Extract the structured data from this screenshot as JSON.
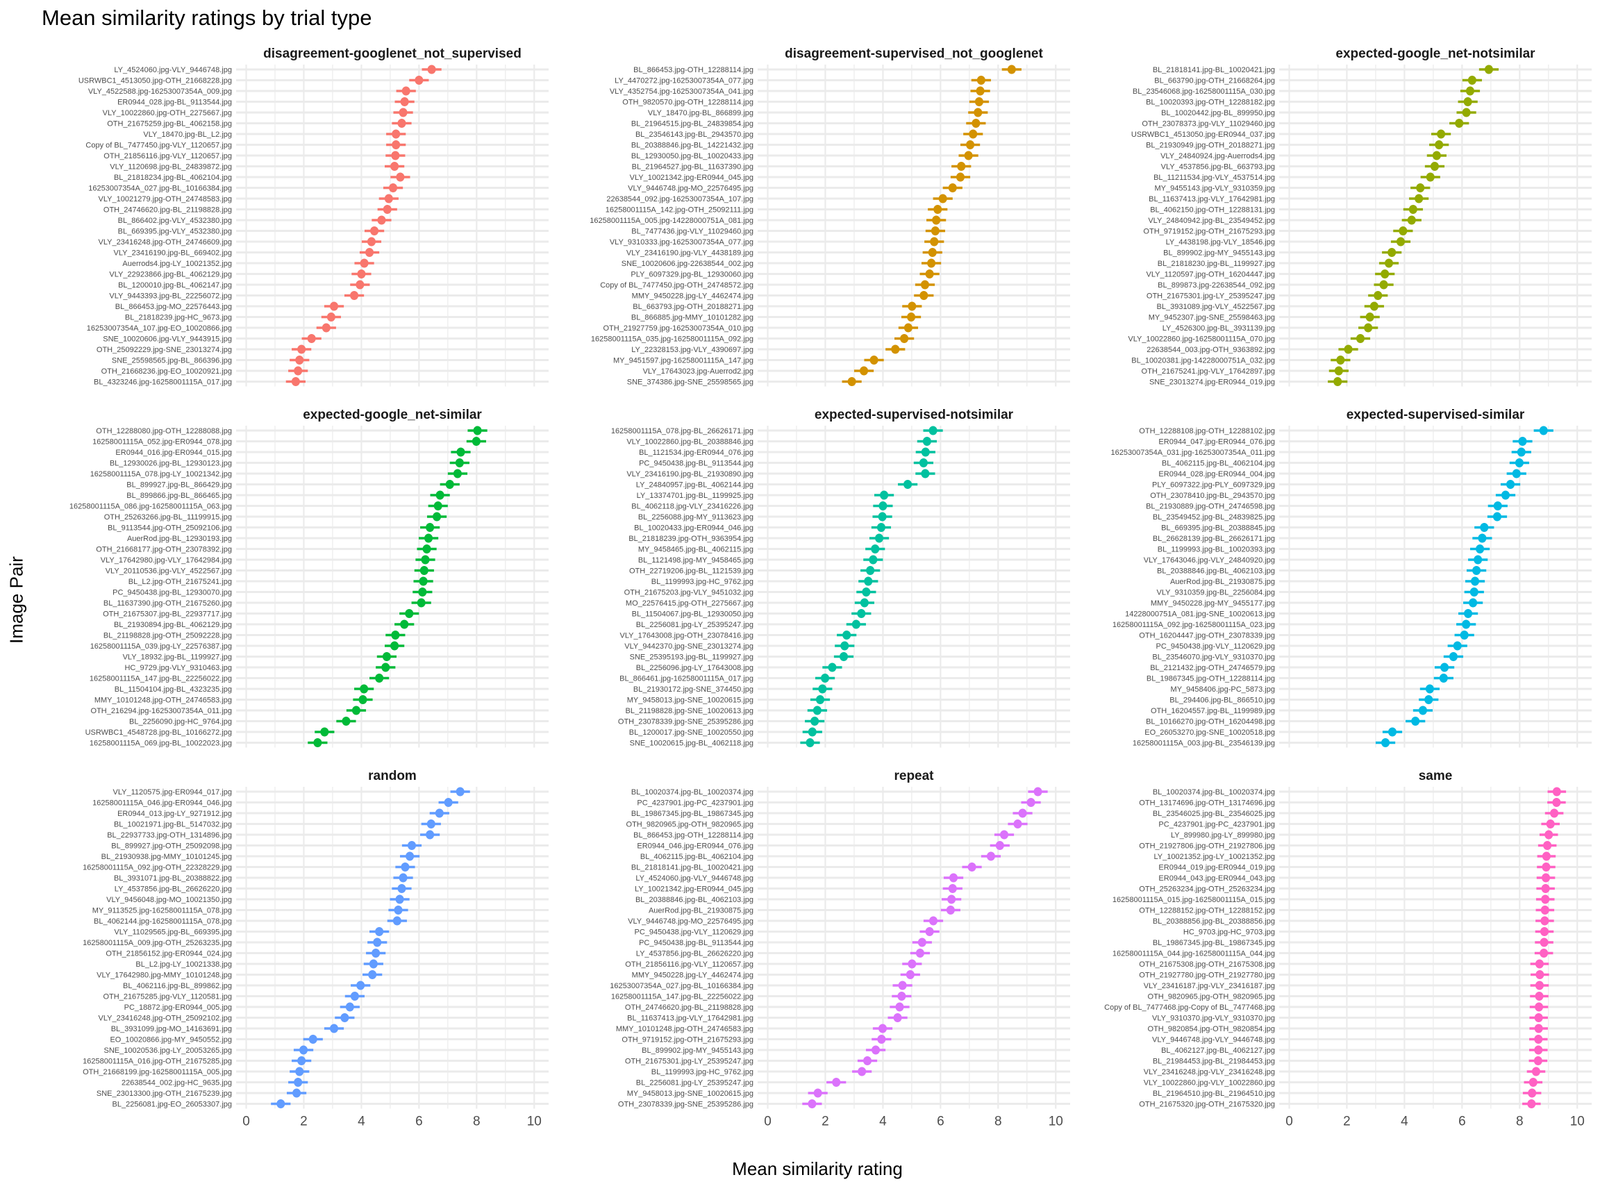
{
  "title": "Mean similarity ratings by trial type",
  "chart_data": {
    "type": "scatter",
    "title": "Mean similarity ratings by trial type",
    "xlabel": "Mean similarity rating",
    "ylabel": "Image Pair",
    "xlim": [
      -0.35,
      10.5
    ],
    "xticks": [
      0,
      2,
      4,
      6,
      8,
      10
    ],
    "grid": true,
    "legend": "none",
    "marks": "point with horizontal error bar",
    "panels": [
      {
        "name": "disagreement-googlenet_not_supervised",
        "color": "#F8766D",
        "error": 0.34,
        "labels": [
          "LY_4524060.jpg-VLY_9446748.jpg",
          "USRWBC1_4513050.jpg-OTH_21668228.jpg",
          "VLY_4522588.jpg-16253007354A_009.jpg",
          "ER0944_028.jpg-BL_9113544.jpg",
          "VLY_10022860.jpg-OTH_2275667.jpg",
          "OTH_21675259.jpg-BL_4062158.jpg",
          "VLY_18470.jpg-BL_L2.jpg",
          "Copy of BL_7477450.jpg-VLY_1120657.jpg",
          "OTH_21856116.jpg-VLY_1120657.jpg",
          "VLY_1120698.jpg-BL_24839872.jpg",
          "BL_21818234.jpg-BL_4062104.jpg",
          "16253007354A_027.jpg-BL_10166384.jpg",
          "VLY_10021279.jpg-OTH_24748583.jpg",
          "OTH_24746620.jpg-BL_21198828.jpg",
          "BL_866402.jpg-VLY_4532380.jpg",
          "BL_669395.jpg-VLY_4532380.jpg",
          "VLY_23416248.jpg-OTH_24746609.jpg",
          "VLY_23416190.jpg-BL_669402.jpg",
          "Auerrods4.jpg-LY_10021352.jpg",
          "VLY_22923866.jpg-BL_4062129.jpg",
          "BL_1200010.jpg-BL_4062147.jpg",
          "VLY_9443393.jpg-BL_22256072.jpg",
          "BL_866453.jpg-MO_22576443.jpg",
          "BL_21818239.jpg-HC_9673.jpg",
          "16253007354A_107.jpg-EO_10020866.jpg",
          "SNE_10020606.jpg-VLY_9443915.jpg",
          "OTH_25092229.jpg-SNE_23013274.jpg",
          "SNE_25598565.jpg-BL_866396.jpg",
          "OTH_21668236.jpg-EO_10020921.jpg",
          "BL_4323246.jpg-16258001115A_017.jpg"
        ],
        "values": [
          6.44,
          6.0,
          5.55,
          5.5,
          5.45,
          5.4,
          5.2,
          5.2,
          5.18,
          5.15,
          5.35,
          5.1,
          4.95,
          4.9,
          4.7,
          4.45,
          4.35,
          4.28,
          4.1,
          4.0,
          3.95,
          3.75,
          3.05,
          2.95,
          2.78,
          2.27,
          1.92,
          1.85,
          1.8,
          1.72
        ]
      },
      {
        "name": "disagreement-supervised_not_googlenet",
        "color": "#D39200",
        "error": 0.34,
        "labels": [
          "BL_866453.jpg-OTH_12288114.jpg",
          "LY_4470272.jpg-16253007354A_077.jpg",
          "VLY_4352754.jpg-16253007354A_041.jpg",
          "OTH_9820570.jpg-OTH_12288114.jpg",
          "VLY_18470.jpg-BL_866899.jpg",
          "BL_21964515.jpg-BL_24839854.jpg",
          "BL_23546143.jpg-BL_2943570.jpg",
          "BL_20388846.jpg-BL_14221432.jpg",
          "BL_12930050.jpg-BL_10020433.jpg",
          "BL_21964527.jpg-BL_11637390.jpg",
          "VLY_10021342.jpg-ER0944_045.jpg",
          "VLY_9446748.jpg-MO_22576495.jpg",
          "22638544_092.jpg-16253007354A_107.jpg",
          "16258001115A_142.jpg-OTH_25092111.jpg",
          "16258001115A_005.jpg-14228000751A_081.jpg",
          "BL_7477436.jpg-VLY_11029460.jpg",
          "VLY_9310333.jpg-16253007354A_077.jpg",
          "VLY_23416190.jpg-VLY_4438189.jpg",
          "SNE_10020606.jpg-22638544_002.jpg",
          "PLY_6097329.jpg-BL_12930060.jpg",
          "Copy of BL_7477450.jpg-OTH_24748572.jpg",
          "MMY_9450228.jpg-LY_4462474.jpg",
          "BL_663793.jpg-OTH_20188271.jpg",
          "BL_866885.jpg-MMY_10101282.jpg",
          "OTH_21927759.jpg-16253007354A_010.jpg",
          "16258001115A_035.jpg-16258001115A_092.jpg",
          "LY_22328153.jpg-VLY_4390697.jpg",
          "MY_9451597.jpg-16258001115A_147.jpg",
          "VLY_17643023.jpg-Auerrod2.jpg",
          "SNE_374386.jpg-SNE_25598565.jpg"
        ],
        "values": [
          8.47,
          7.41,
          7.38,
          7.34,
          7.3,
          7.23,
          7.13,
          7.03,
          6.97,
          6.72,
          6.69,
          6.42,
          6.08,
          5.9,
          5.85,
          5.82,
          5.78,
          5.72,
          5.68,
          5.62,
          5.46,
          5.42,
          5.01,
          4.98,
          4.88,
          4.74,
          4.43,
          3.69,
          3.34,
          2.92
        ]
      },
      {
        "name": "expected-google_net-notsimilar",
        "color": "#93AA00",
        "error": 0.34,
        "labels": [
          "BL_21818141.jpg-BL_10020421.jpg",
          "BL_663790.jpg-OTH_21668264.jpg",
          "BL_23546068.jpg-16258001115A_030.jpg",
          "BL_10020393.jpg-OTH_12288182.jpg",
          "BL_10020442.jpg-BL_899950.jpg",
          "OTH_23078373.jpg-VLY_11029460.jpg",
          "USRWBC1_4513050.jpg-ER0944_037.jpg",
          "BL_21930949.jpg-OTH_20188271.jpg",
          "VLY_24840924.jpg-Auerrods4.jpg",
          "VLY_4537856.jpg-BL_663793.jpg",
          "BL_11211534.jpg-VLY_4537514.jpg",
          "MY_9455143.jpg-VLY_9310359.jpg",
          "BL_11637413.jpg-VLY_17642981.jpg",
          "BL_4062150.jpg-OTH_12288131.jpg",
          "VLY_24840942.jpg-BL_23549452.jpg",
          "OTH_9719152.jpg-OTH_21675293.jpg",
          "LY_4438198.jpg-VLY_18546.jpg",
          "BL_899902.jpg-MY_9455143.jpg",
          "BL_21818230.jpg-BL_1199927.jpg",
          "VLY_1120597.jpg-OTH_16204447.jpg",
          "BL_899873.jpg-22638544_092.jpg",
          "OTH_21675301.jpg-LY_25395247.jpg",
          "BL_3931089.jpg-VLY_4522567.jpg",
          "MY_9452307.jpg-SNE_25598463.jpg",
          "LY_4526300.jpg-BL_3931139.jpg",
          "VLY_10022860.jpg-16258001115A_070.jpg",
          "22638544_003.jpg-OTH_9363892.jpg",
          "BL_10020381.jpg-14228000751A_032.jpg",
          "OTH_21675241.jpg-VLY_17642897.jpg",
          "SNE_23013274.jpg-ER0944_019.jpg"
        ],
        "values": [
          6.93,
          6.35,
          6.28,
          6.2,
          6.15,
          5.9,
          5.27,
          5.2,
          5.12,
          5.05,
          4.9,
          4.55,
          4.5,
          4.3,
          4.25,
          3.95,
          3.87,
          3.56,
          3.46,
          3.32,
          3.28,
          3.08,
          2.95,
          2.8,
          2.74,
          2.47,
          2.05,
          1.78,
          1.72,
          1.68
        ]
      },
      {
        "name": "expected-google_net-similar",
        "color": "#00BA38",
        "error": 0.34,
        "labels": [
          "OTH_12288080.jpg-OTH_12288088.jpg",
          "16258001115A_052.jpg-ER0944_078.jpg",
          "ER0944_016.jpg-ER0944_015.jpg",
          "BL_12930026.jpg-BL_12930123.jpg",
          "16258001115A_078.jpg-LY_10021342.jpg",
          "BL_899927.jpg-BL_866429.jpg",
          "BL_899866.jpg-BL_866465.jpg",
          "16258001115A_086.jpg-16258001115A_063.jpg",
          "OTH_25263266.jpg-BL_11199915.jpg",
          "BL_9113544.jpg-OTH_25092106.jpg",
          "AuerRod.jpg-BL_12930193.jpg",
          "OTH_21668177.jpg-OTH_23078392.jpg",
          "VLY_17642980.jpg-VLY_17642984.jpg",
          "VLY_20110536.jpg-VLY_4522567.jpg",
          "BL_L2.jpg-OTH_21675241.jpg",
          "PC_9450438.jpg-BL_12930070.jpg",
          "BL_11637390.jpg-OTH_21675260.jpg",
          "OTH_21675307.jpg-BL_22937717.jpg",
          "BL_21930894.jpg-BL_4062129.jpg",
          "BL_21198828.jpg-OTH_25092228.jpg",
          "16258001115A_039.jpg-LY_22576387.jpg",
          "VLY_18932.jpg-BL_1199927.jpg",
          "HC_9729.jpg-VLY_9310463.jpg",
          "16258001115A_147.jpg-BL_22256022.jpg",
          "BL_11504104.jpg-BL_4323235.jpg",
          "MMY_10101248.jpg-OTH_24746583.jpg",
          "OTH_216294.jpg-16253007354A_011.jpg",
          "BL_2256090.jpg-HC_9764.jpg",
          "USRWBC1_4548728.jpg-BL_10166272.jpg",
          "16258001115A_069.jpg-BL_10022023.jpg"
        ],
        "values": [
          8.03,
          7.99,
          7.45,
          7.41,
          7.34,
          7.07,
          6.73,
          6.66,
          6.62,
          6.38,
          6.33,
          6.27,
          6.22,
          6.18,
          6.15,
          6.12,
          6.08,
          5.66,
          5.49,
          5.18,
          5.15,
          4.88,
          4.84,
          4.62,
          4.09,
          4.05,
          3.82,
          3.47,
          2.72,
          2.48
        ]
      },
      {
        "name": "expected-supervised-notsimilar",
        "color": "#00C19F",
        "error": 0.34,
        "labels": [
          "16258001115A_078.jpg-BL_26626171.jpg",
          "VLY_10022860.jpg-BL_20388846.jpg",
          "BL_1121534.jpg-ER0944_076.jpg",
          "PC_9450438.jpg-BL_9113544.jpg",
          "VLY_23416190.jpg-BL_21930890.jpg",
          "LY_24840957.jpg-BL_4062144.jpg",
          "LY_13374701.jpg-BL_1199925.jpg",
          "BL_4062118.jpg-VLY_23416226.jpg",
          "BL_2256088.jpg-MY_9113623.jpg",
          "BL_10020433.jpg-ER0944_046.jpg",
          "BL_21818239.jpg-OTH_9363954.jpg",
          "MY_9458465.jpg-BL_4062115.jpg",
          "BL_1121498.jpg-MY_9458465.jpg",
          "OTH_22719206.jpg-BL_1121539.jpg",
          "BL_1199993.jpg-HC_9762.jpg",
          "OTH_21675203.jpg-VLY_9451032.jpg",
          "MO_22576415.jpg-OTH_2275667.jpg",
          "BL_11504067.jpg-BL_12930050.jpg",
          "BL_2256081.jpg-LY_25395247.jpg",
          "VLY_17643008.jpg-OTH_23078416.jpg",
          "VLY_9442370.jpg-SNE_23013274.jpg",
          "SNE_25395193.jpg-BL_1199927.jpg",
          "BL_2256096.jpg-LY_17643008.jpg",
          "BL_866461.jpg-16258001115A_017.jpg",
          "BL_21930172.jpg-SNE_374450.jpg",
          "MY_9458013.jpg-SNE_10020615.jpg",
          "BL_21198828.jpg-SNE_10020613.jpg",
          "OTH_23078339.jpg-SNE_25395286.jpg",
          "BL_1200017.jpg-SNE_10020550.jpg",
          "SNE_10020615.jpg-BL_4062118.jpg"
        ],
        "values": [
          5.74,
          5.53,
          5.48,
          5.41,
          5.47,
          4.86,
          4.04,
          4.0,
          3.98,
          3.94,
          3.87,
          3.73,
          3.66,
          3.56,
          3.49,
          3.42,
          3.36,
          3.25,
          3.07,
          2.74,
          2.67,
          2.64,
          2.24,
          1.99,
          1.9,
          1.82,
          1.72,
          1.63,
          1.55,
          1.47
        ]
      },
      {
        "name": "expected-supervised-similar",
        "color": "#00B9E3",
        "error": 0.34,
        "labels": [
          "OTH_12288108.jpg-OTH_12288102.jpg",
          "ER0944_047.jpg-ER0944_076.jpg",
          "16253007354A_031.jpg-16253007354A_011.jpg",
          "BL_4062115.jpg-BL_4062104.jpg",
          "ER0944_028.jpg-ER0944_004.jpg",
          "PLY_6097322.jpg-PLY_6097329.jpg",
          "OTH_23078410.jpg-BL_2943570.jpg",
          "BL_21930889.jpg-OTH_24746598.jpg",
          "BL_23549452.jpg-BL_24839825.jpg",
          "BL_669395.jpg-BL_20388845.jpg",
          "BL_26628139.jpg-BL_26626171.jpg",
          "BL_1199993.jpg-BL_10020393.jpg",
          "VLY_17643046.jpg-VLY_24840920.jpg",
          "BL_20388846.jpg-BL_4062103.jpg",
          "AuerRod.jpg-BL_21930875.jpg",
          "VLY_9310359.jpg-BL_2256084.jpg",
          "MMY_9450228.jpg-MY_9455177.jpg",
          "14228000751A_081.jpg-SNE_10020613.jpg",
          "16258001115A_092.jpg-16258001115A_023.jpg",
          "OTH_16204447.jpg-OTH_23078339.jpg",
          "PC_9450438.jpg-VLY_1120629.jpg",
          "BL_23546070.jpg-VLY_9310370.jpg",
          "BL_2121432.jpg-OTH_24746579.jpg",
          "BL_19867345.jpg-OTH_12288114.jpg",
          "MY_9458406.jpg-PC_5873.jpg",
          "BL_294406.jpg-BL_866510.jpg",
          "OTH_16204557.jpg-BL_1199989.jpg",
          "BL_10166270.jpg-OTH_16204498.jpg",
          "EO_26053270.jpg-SNE_10020518.jpg",
          "16258001115A_003.jpg-BL_23546139.jpg"
        ],
        "values": [
          8.83,
          8.1,
          8.06,
          7.99,
          7.89,
          7.68,
          7.51,
          7.24,
          7.22,
          6.77,
          6.7,
          6.62,
          6.55,
          6.5,
          6.45,
          6.42,
          6.38,
          6.21,
          6.14,
          6.08,
          5.84,
          5.7,
          5.39,
          5.36,
          4.88,
          4.84,
          4.64,
          4.38,
          3.58,
          3.34
        ]
      },
      {
        "name": "random",
        "color": "#619CFF",
        "error": 0.34,
        "labels": [
          "VLY_1120575.jpg-ER0944_017.jpg",
          "16258001115A_046.jpg-ER0944_046.jpg",
          "ER0944_013.jpg-LY_9271912.jpg",
          "BL_10021971.jpg-BL_5147032.jpg",
          "BL_22937733.jpg-OTH_1314896.jpg",
          "BL_899927.jpg-OTH_25092098.jpg",
          "BL_21930938.jpg-MMY_10101245.jpg",
          "16258001115A_092.jpg-OTH_22328229.jpg",
          "BL_3931071.jpg-BL_20388822.jpg",
          "LY_4537856.jpg-BL_26626220.jpg",
          "VLY_9456048.jpg-MO_10021350.jpg",
          "MY_9113525.jpg-16258001115A_078.jpg",
          "BL_4062144.jpg-16258001115A_078.jpg",
          "VLY_11029565.jpg-BL_669395.jpg",
          "16258001115A_009.jpg-OTH_25263235.jpg",
          "OTH_21856152.jpg-ER0944_024.jpg",
          "BL_L2.jpg-LY_10021338.jpg",
          "VLY_17642980.jpg-MMY_10101248.jpg",
          "BL_4062116.jpg-BL_899862.jpg",
          "OTH_21675285.jpg-VLY_1120581.jpg",
          "PC_18872.jpg-ER0944_005.jpg",
          "VLY_23416248.jpg-OTH_25092102.jpg",
          "BL_3931099.jpg-MO_14163691.jpg",
          "EO_10020866.jpg-MY_9450552.jpg",
          "SNE_10020536.jpg-LY_20053265.jpg",
          "16258001115A_016.jpg-OTH_21675285.jpg",
          "OTH_21668199.jpg-16258001115A_005.jpg",
          "22638544_002.jpg-HC_9635.jpg",
          "SNE_23013300.jpg-OTH_21675239.jpg",
          "BL_2256081.jpg-EO_26053307.jpg"
        ],
        "values": [
          7.43,
          7.02,
          6.71,
          6.42,
          6.38,
          5.75,
          5.68,
          5.52,
          5.45,
          5.4,
          5.33,
          5.28,
          5.24,
          4.62,
          4.55,
          4.5,
          4.42,
          4.38,
          3.97,
          3.77,
          3.6,
          3.42,
          3.05,
          2.32,
          1.99,
          1.92,
          1.85,
          1.8,
          1.75,
          1.2
        ]
      },
      {
        "name": "repeat",
        "color": "#DB72FB",
        "error": 0.34,
        "labels": [
          "BL_10020374.jpg-BL_10020374.jpg",
          "PC_4237901.jpg-PC_4237901.jpg",
          "BL_19867345.jpg-BL_19867345.jpg",
          "OTH_9820965.jpg-OTH_9820965.jpg",
          "BL_866453.jpg-OTH_12288114.jpg",
          "ER0944_046.jpg-ER0944_076.jpg",
          "BL_4062115.jpg-BL_4062104.jpg",
          "BL_21818141.jpg-BL_10020421.jpg",
          "LY_4524060.jpg-VLY_9446748.jpg",
          "LY_10021342.jpg-ER0944_045.jpg",
          "BL_20388846.jpg-BL_4062103.jpg",
          "AuerRod.jpg-BL_21930875.jpg",
          "VLY_9446748.jpg-MO_22576495.jpg",
          "PC_9450438.jpg-VLY_1120629.jpg",
          "PC_9450438.jpg-BL_9113544.jpg",
          "LY_4537856.jpg-BL_26626220.jpg",
          "OTH_21856116.jpg-VLY_1120657.jpg",
          "MMY_9450228.jpg-LY_4462474.jpg",
          "16253007354A_027.jpg-BL_10166384.jpg",
          "16258001115A_147.jpg-BL_22256022.jpg",
          "OTH_24746620.jpg-BL_21198828.jpg",
          "BL_11637413.jpg-VLY_17642981.jpg",
          "MMY_10101248.jpg-OTH_24746583.jpg",
          "OTH_9719152.jpg-OTH_21675293.jpg",
          "BL_899902.jpg-MY_9455143.jpg",
          "OTH_21675301.jpg-LY_25395247.jpg",
          "BL_1199993.jpg-HC_9762.jpg",
          "BL_2256081.jpg-LY_25395247.jpg",
          "MY_9458013.jpg-SNE_10020615.jpg",
          "OTH_23078339.jpg-SNE_25395286.jpg"
        ],
        "values": [
          9.38,
          9.14,
          8.85,
          8.68,
          8.21,
          8.06,
          7.75,
          7.09,
          6.45,
          6.42,
          6.38,
          6.35,
          5.75,
          5.62,
          5.36,
          5.29,
          5.01,
          4.95,
          4.68,
          4.65,
          4.58,
          4.51,
          3.99,
          3.95,
          3.75,
          3.46,
          3.27,
          2.38,
          1.74,
          1.54
        ]
      },
      {
        "name": "same",
        "color": "#FF61C3",
        "error": 0.32,
        "labels": [
          "BL_10020374.jpg-BL_10020374.jpg",
          "OTH_13174696.jpg-OTH_13174696.jpg",
          "BL_23546025.jpg-BL_23546025.jpg",
          "PC_4237901.jpg-PC_4237901.jpg",
          "LY_899980.jpg-LY_899980.jpg",
          "OTH_21927806.jpg-OTH_21927806.jpg",
          "LY_10021352.jpg-LY_10021352.jpg",
          "ER0944_019.jpg-ER0944_019.jpg",
          "ER0944_043.jpg-ER0944_043.jpg",
          "OTH_25263234.jpg-OTH_25263234.jpg",
          "16258001115A_015.jpg-16258001115A_015.jpg",
          "OTH_12288152.jpg-OTH_12288152.jpg",
          "BL_20388856.jpg-BL_20388856.jpg",
          "HC_9703.jpg-HC_9703.jpg",
          "BL_19867345.jpg-BL_19867345.jpg",
          "16258001115A_044.jpg-16258001115A_044.jpg",
          "OTH_21675308.jpg-OTH_21675308.jpg",
          "OTH_21927780.jpg-OTH_21927780.jpg",
          "VLY_23416187.jpg-VLY_23416187.jpg",
          "OTH_9820965.jpg-OTH_9820965.jpg",
          "Copy of BL_7477468.jpg-Copy of BL_7477468.jpg",
          "VLY_9310370.jpg-VLY_9310370.jpg",
          "OTH_9820854.jpg-OTH_9820854.jpg",
          "VLY_9446748.jpg-VLY_9446748.jpg",
          "BL_4062127.jpg-BL_4062127.jpg",
          "BL_21984453.jpg-BL_21984453.jpg",
          "VLY_23416248.jpg-VLY_23416248.jpg",
          "VLY_10022860.jpg-VLY_10022860.jpg",
          "BL_21964510.jpg-BL_21964510.jpg",
          "OTH_21675320.jpg-OTH_21675320.jpg"
        ],
        "values": [
          9.29,
          9.28,
          9.2,
          9.07,
          9.01,
          8.96,
          8.93,
          8.92,
          8.91,
          8.9,
          8.89,
          8.88,
          8.87,
          8.86,
          8.85,
          8.84,
          8.69,
          8.7,
          8.69,
          8.68,
          8.67,
          8.66,
          8.66,
          8.65,
          8.65,
          8.64,
          8.57,
          8.47,
          8.43,
          8.41
        ]
      }
    ]
  }
}
